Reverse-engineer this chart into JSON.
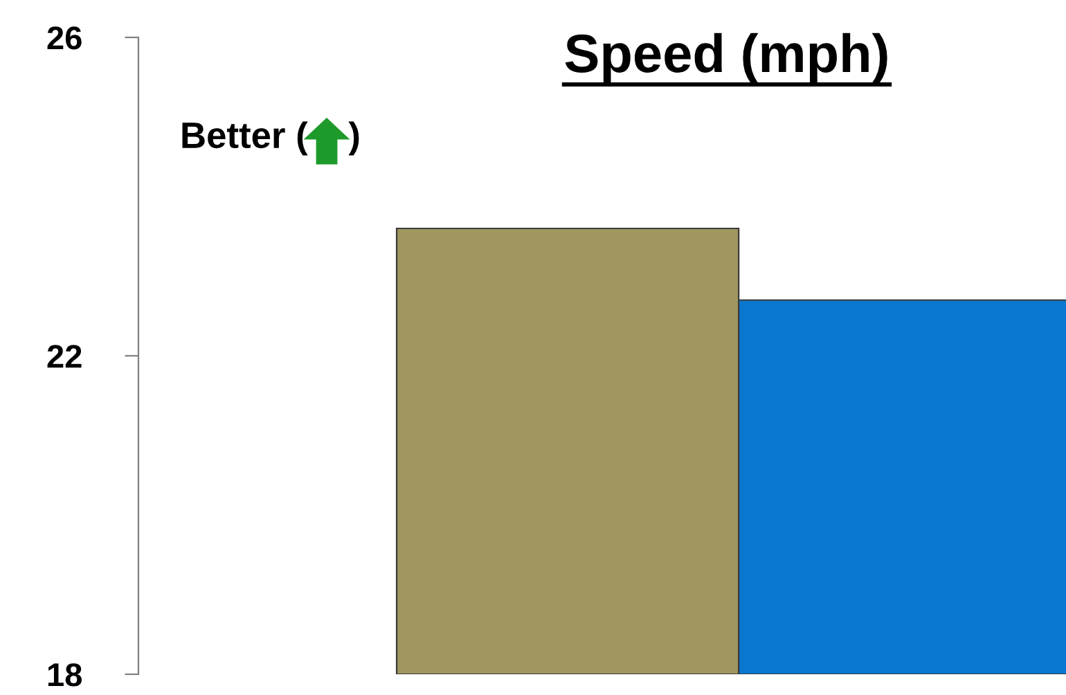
{
  "chart_data": {
    "type": "bar",
    "title": "Speed (mph)",
    "categories": [
      null,
      null
    ],
    "values": [
      23.6,
      22.7
    ],
    "colors": [
      "#a09660",
      "#0a78d0"
    ],
    "ylim": [
      18,
      26
    ],
    "yticks": [
      18,
      22,
      26
    ],
    "grid": false,
    "tick_labels": "y",
    "annotations": [
      "Better (    )"
    ]
  }
}
